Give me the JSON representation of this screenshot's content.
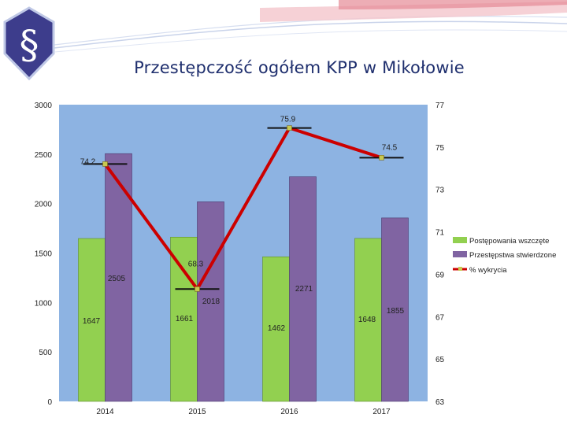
{
  "title": "Przestępczość ogółem KPP w Mikołowie",
  "colors": {
    "plot_bg": "#8db3e2",
    "bar_initiated": "#92d050",
    "bar_confirmed": "#8064a2",
    "line_detection": "#cc0000",
    "emblem": "#3d3d8c"
  },
  "emblem_symbol": "§",
  "chart_data": {
    "type": "bar",
    "categories": [
      "2014",
      "2015",
      "2016",
      "2017"
    ],
    "series": [
      {
        "name": "Postępowania wszczęte",
        "type": "bar",
        "axis": "left",
        "values": [
          1647,
          1661,
          1462,
          1648
        ],
        "labels": [
          "1647",
          "1661",
          "1462",
          "1648"
        ]
      },
      {
        "name": "Przestępstwa stwierdzone",
        "type": "bar",
        "axis": "left",
        "values": [
          2505,
          2018,
          2271,
          1855
        ],
        "labels": [
          "2505",
          "2018",
          "2271",
          "1855"
        ]
      },
      {
        "name": "% wykrycia",
        "type": "line",
        "axis": "right",
        "values": [
          74.2,
          68.3,
          75.9,
          74.5
        ],
        "labels": [
          "74.2",
          "68.3",
          "75.9",
          "74.5"
        ]
      }
    ],
    "y_left": {
      "range": [
        0,
        3000
      ],
      "ticks": [
        "0",
        "500",
        "1000",
        "1500",
        "2000",
        "2500",
        "3000"
      ]
    },
    "y_right": {
      "range": [
        63,
        77
      ],
      "ticks": [
        "63",
        "65",
        "67",
        "69",
        "71",
        "73",
        "75",
        "77"
      ]
    },
    "grid": false,
    "legend": "right"
  }
}
